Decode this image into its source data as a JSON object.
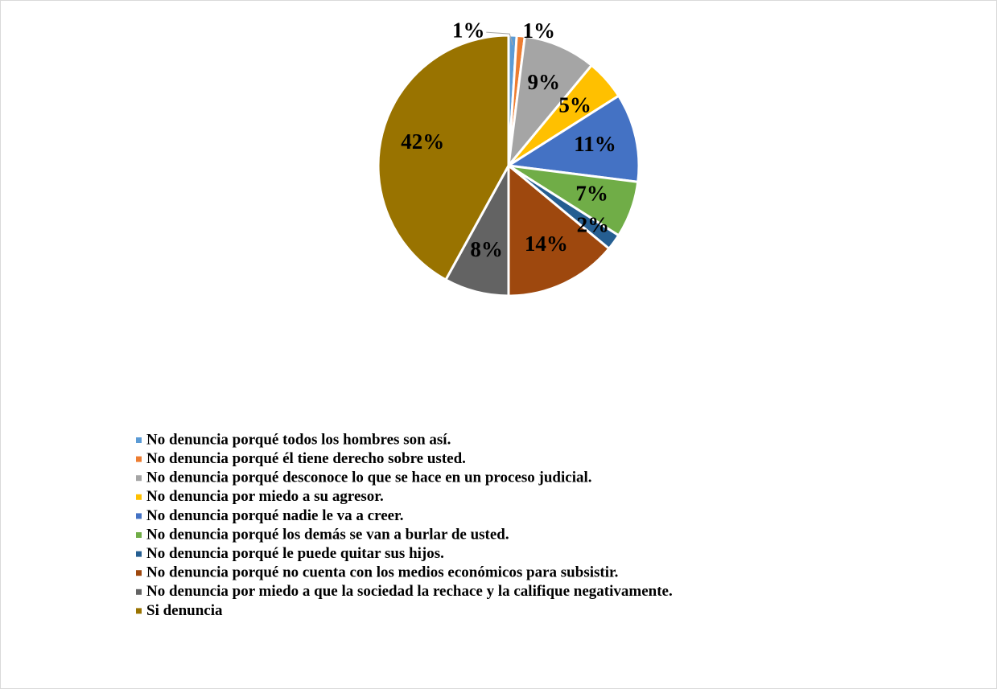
{
  "chart_data": {
    "type": "pie",
    "categories": [
      "No denuncia porqué todos los hombres son así.",
      "No denuncia porqué él tiene derecho sobre usted.",
      "No denuncia porqué desconoce lo que se hace en un proceso judicial.",
      "No denuncia por miedo a su agresor.",
      "No denuncia porqué nadie le va a creer.",
      "No denuncia porqué los demás se van a burlar de usted.",
      "No denuncia porqué le puede quitar sus hijos.",
      "No denuncia porqué no cuenta con los medios económicos para subsistir.",
      "No denuncia por miedo a que la sociedad la rechace y la califique negativamente.",
      "Si denuncia"
    ],
    "values": [
      1,
      1,
      9,
      5,
      11,
      7,
      2,
      14,
      8,
      42
    ],
    "value_labels": [
      "1%",
      "1%",
      "9%",
      "5%",
      "11%",
      "7%",
      "2%",
      "14%",
      "8%",
      "42%"
    ],
    "colors": [
      "#5b9bd5",
      "#ed7d31",
      "#a5a5a5",
      "#ffc000",
      "#4472c4",
      "#70ad47",
      "#255e91",
      "#9e480e",
      "#636363",
      "#997300"
    ],
    "legend": "bottom"
  }
}
